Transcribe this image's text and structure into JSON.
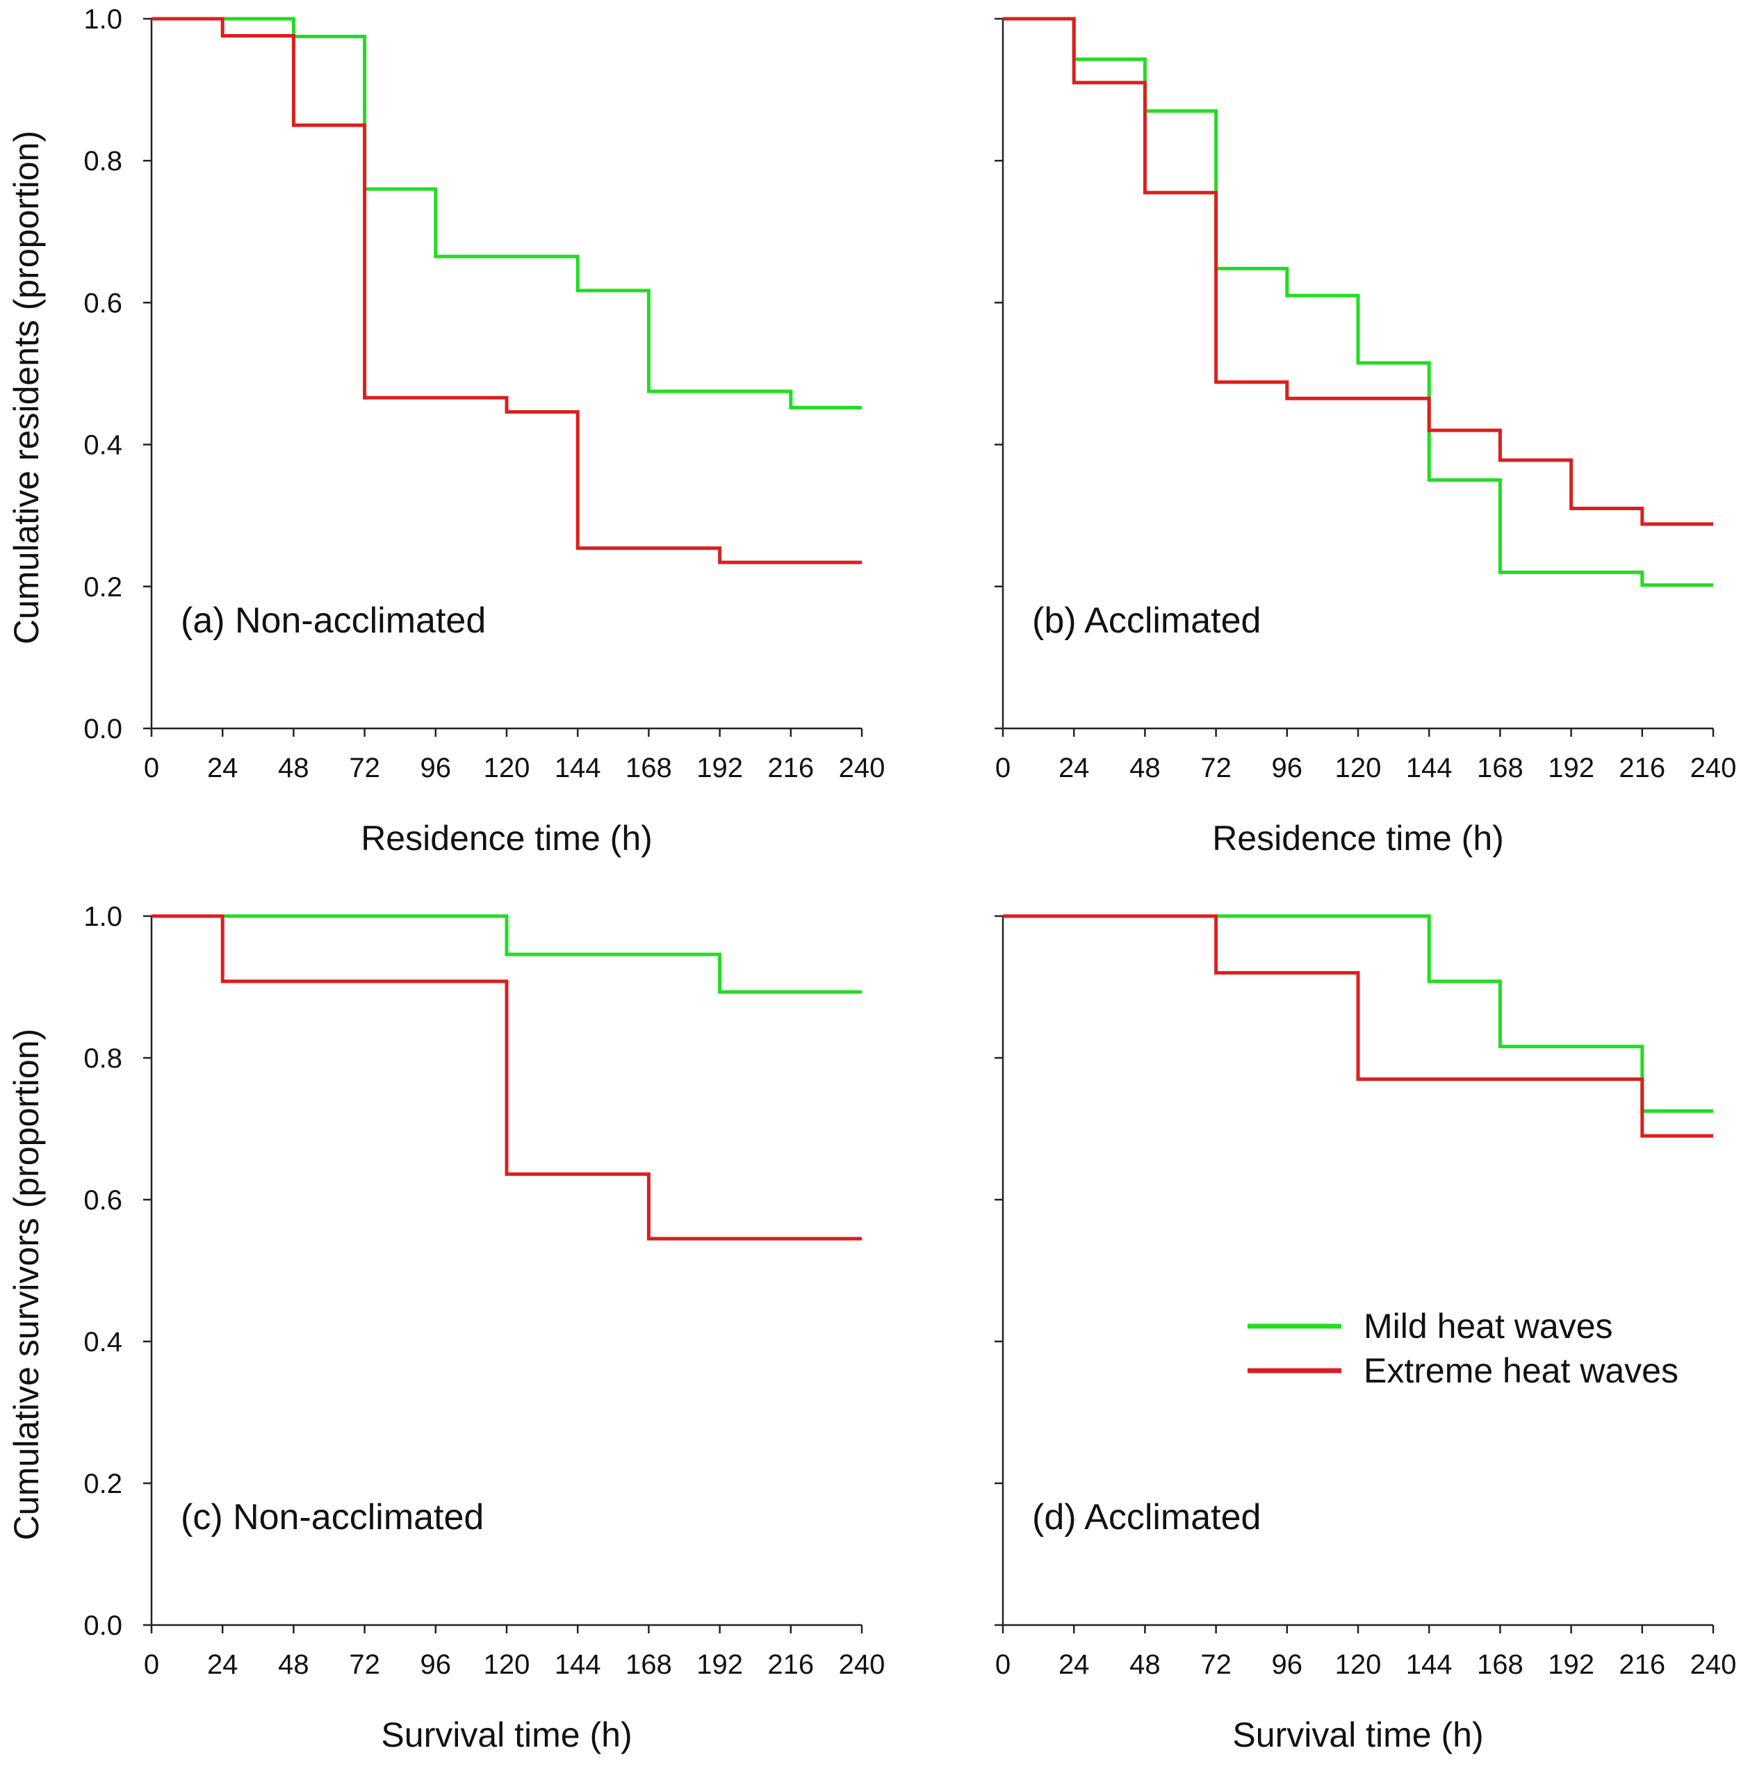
{
  "chart_data": [
    {
      "id": "a",
      "type": "line",
      "step": true,
      "panel_label": "(a) Non-acclimated",
      "xlabel": "Residence time (h)",
      "ylabel": "Cumulative residents (proportion)",
      "xlim": [
        0,
        240
      ],
      "ylim": [
        0,
        1
      ],
      "xticks": [
        "0",
        "24",
        "48",
        "72",
        "96",
        "120",
        "144",
        "168",
        "192",
        "216",
        "240"
      ],
      "yticks": [
        "0.0",
        "0.2",
        "0.4",
        "0.6",
        "0.8",
        "1.0"
      ],
      "series": [
        {
          "name": "Mild heat waves",
          "color": "#22dd22",
          "x": [
            0,
            48,
            72,
            96,
            144,
            168,
            216,
            240
          ],
          "y": [
            1.0,
            0.975,
            0.76,
            0.665,
            0.617,
            0.475,
            0.452,
            0.452
          ]
        },
        {
          "name": "Extreme heat waves",
          "color": "#dd1e1e",
          "x": [
            0,
            24,
            48,
            72,
            120,
            144,
            192,
            240
          ],
          "y": [
            1.0,
            0.976,
            0.85,
            0.466,
            0.446,
            0.254,
            0.234,
            0.234
          ]
        }
      ]
    },
    {
      "id": "b",
      "type": "line",
      "step": true,
      "panel_label": "(b) Acclimated",
      "xlabel": "Residence time (h)",
      "ylabel": "",
      "xlim": [
        0,
        240
      ],
      "ylim": [
        0,
        1
      ],
      "xticks": [
        "0",
        "24",
        "48",
        "72",
        "96",
        "120",
        "144",
        "168",
        "192",
        "216",
        "240"
      ],
      "yticks": [],
      "series": [
        {
          "name": "Mild heat waves",
          "color": "#22dd22",
          "x": [
            0,
            24,
            48,
            72,
            96,
            120,
            144,
            168,
            216,
            240
          ],
          "y": [
            1.0,
            0.943,
            0.87,
            0.648,
            0.61,
            0.515,
            0.35,
            0.22,
            0.202,
            0.202
          ]
        },
        {
          "name": "Extreme heat waves",
          "color": "#dd1e1e",
          "x": [
            0,
            24,
            48,
            72,
            96,
            144,
            168,
            192,
            216,
            240
          ],
          "y": [
            1.0,
            0.91,
            0.755,
            0.488,
            0.465,
            0.42,
            0.378,
            0.31,
            0.288,
            0.288
          ]
        }
      ]
    },
    {
      "id": "c",
      "type": "line",
      "step": true,
      "panel_label": "(c) Non-acclimated",
      "xlabel": "Survival time (h)",
      "ylabel": "Cumulative survivors (proportion)",
      "xlim": [
        0,
        240
      ],
      "ylim": [
        0,
        1
      ],
      "xticks": [
        "0",
        "24",
        "48",
        "72",
        "96",
        "120",
        "144",
        "168",
        "192",
        "216",
        "240"
      ],
      "yticks": [
        "0.0",
        "0.2",
        "0.4",
        "0.6",
        "0.8",
        "1.0"
      ],
      "series": [
        {
          "name": "Mild heat waves",
          "color": "#22dd22",
          "x": [
            0,
            120,
            192,
            240
          ],
          "y": [
            1.0,
            0.946,
            0.893,
            0.893
          ]
        },
        {
          "name": "Extreme heat waves",
          "color": "#dd1e1e",
          "x": [
            0,
            24,
            120,
            168,
            240
          ],
          "y": [
            1.0,
            0.908,
            0.636,
            0.545,
            0.545
          ]
        }
      ]
    },
    {
      "id": "d",
      "type": "line",
      "step": true,
      "panel_label": "(d) Acclimated",
      "xlabel": "Survival time (h)",
      "ylabel": "",
      "xlim": [
        0,
        240
      ],
      "ylim": [
        0,
        1
      ],
      "xticks": [
        "0",
        "24",
        "48",
        "72",
        "96",
        "120",
        "144",
        "168",
        "192",
        "216",
        "240"
      ],
      "yticks": [],
      "legend": {
        "position": "lower-right",
        "entries": [
          "Mild heat waves",
          "Extreme heat waves"
        ]
      },
      "series": [
        {
          "name": "Mild heat waves",
          "color": "#22dd22",
          "x": [
            0,
            144,
            168,
            216,
            240
          ],
          "y": [
            1.0,
            0.908,
            0.816,
            0.725,
            0.725
          ]
        },
        {
          "name": "Extreme heat waves",
          "color": "#dd1e1e",
          "x": [
            0,
            72,
            120,
            216,
            240
          ],
          "y": [
            1.0,
            0.92,
            0.77,
            0.69,
            0.69
          ]
        }
      ]
    }
  ]
}
